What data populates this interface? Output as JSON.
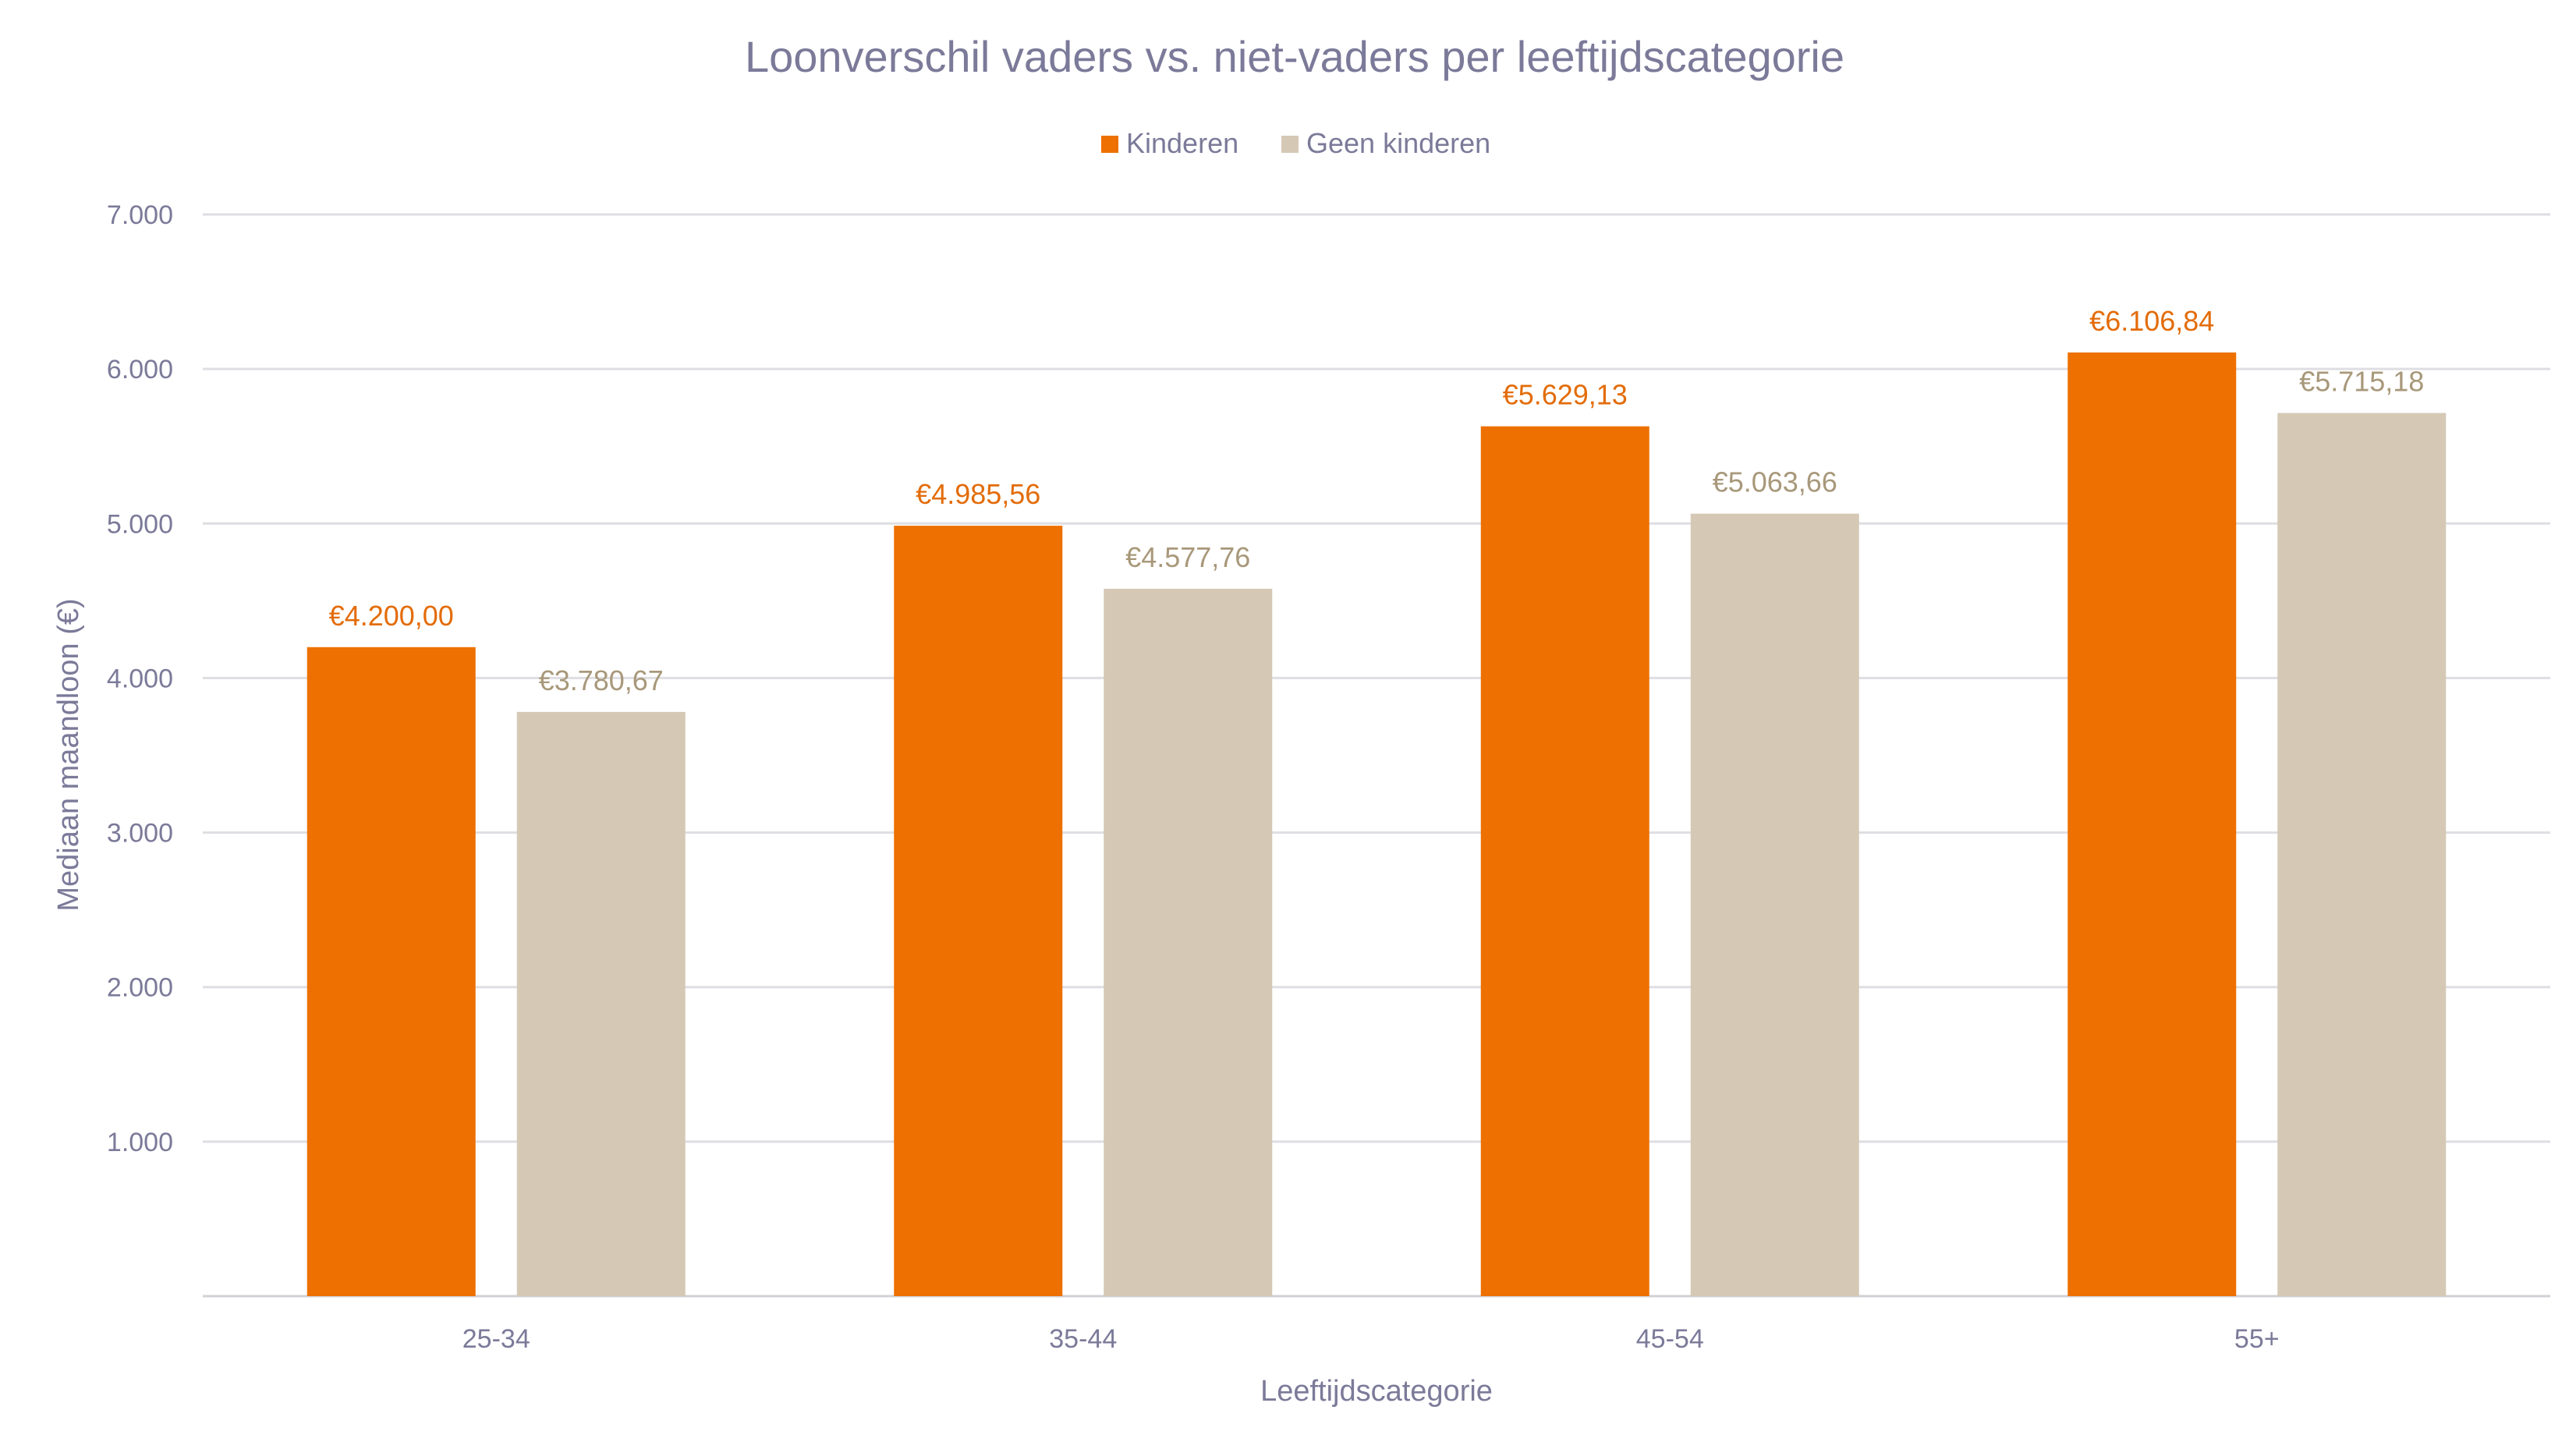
{
  "chart_data": {
    "type": "bar",
    "title": "Loonverschil vaders vs. niet-vaders per leeftijdscategorie",
    "xlabel": "Leeftijdscategorie",
    "ylabel": "Mediaan maandloon (€)",
    "categories": [
      "25-34",
      "35-44",
      "45-54",
      "55+"
    ],
    "series": [
      {
        "name": "Kinderen",
        "values": [
          4200.0,
          4985.56,
          5629.13,
          6106.84
        ],
        "labels": [
          "€4.200,00",
          "€4.985,56",
          "€5.629,13",
          "€6.106,84"
        ],
        "color": "#ED7000",
        "label_color": "#E36C09"
      },
      {
        "name": "Geen kinderen",
        "values": [
          3780.67,
          4577.76,
          5063.66,
          5715.18
        ],
        "labels": [
          "€3.780,67",
          "€4.577,76",
          "€5.063,66",
          "€5.715,18"
        ],
        "color": "#D5C8B5",
        "label_color": "#A8987A"
      }
    ],
    "ylim": [
      0,
      7000
    ],
    "yticks": [
      1000,
      2000,
      3000,
      4000,
      5000,
      6000,
      7000
    ],
    "ytick_labels": [
      "1.000",
      "2.000",
      "3.000",
      "4.000",
      "5.000",
      "6.000",
      "7.000"
    ],
    "grid": true,
    "legend": "top-center",
    "text_color": "#7B7A99",
    "grid_color": "#DEDEE3"
  }
}
